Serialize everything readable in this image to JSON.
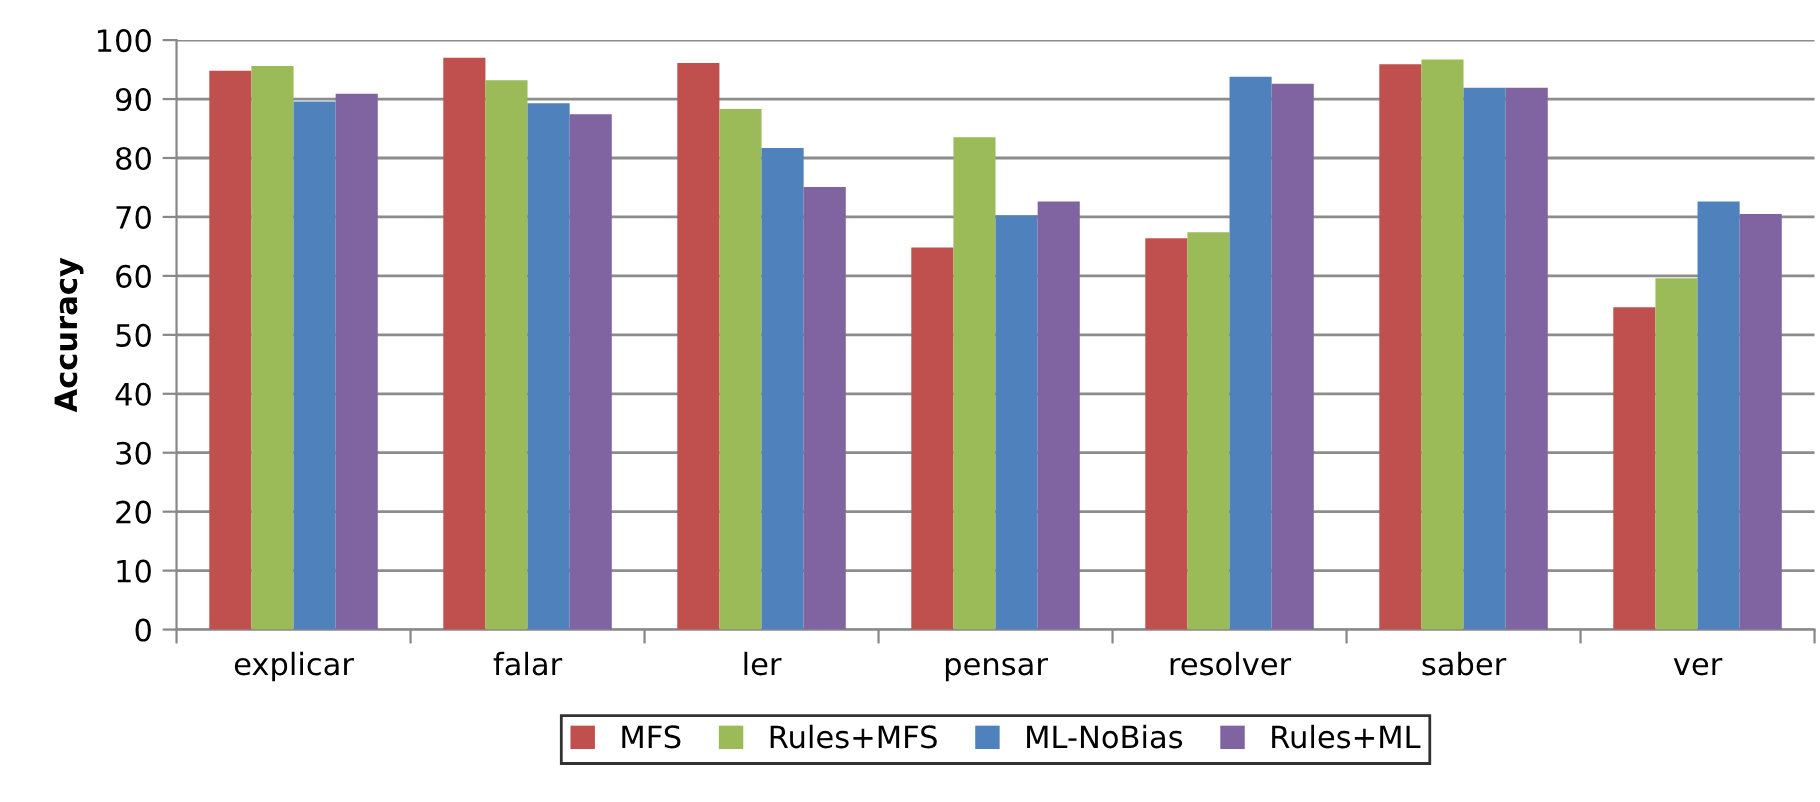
{
  "chart_data": {
    "type": "bar",
    "ylabel": "Accuracy",
    "categories": [
      "explicar",
      "falar",
      "ler",
      "pensar",
      "resolver",
      "saber",
      "ver"
    ],
    "series": [
      {
        "name": "MFS",
        "color": "#c0504d",
        "values": [
          94.8,
          97.0,
          96.1,
          64.8,
          66.4,
          95.9,
          54.7
        ]
      },
      {
        "name": "Rules+MFS",
        "color": "#9bbb59",
        "values": [
          95.6,
          93.2,
          88.3,
          83.5,
          67.4,
          96.7,
          59.6
        ]
      },
      {
        "name": "ML-NoBias",
        "color": "#4f81bd",
        "values": [
          89.6,
          89.3,
          81.7,
          70.3,
          93.8,
          91.9,
          72.6
        ]
      },
      {
        "name": "Rules+ML",
        "color": "#8064a2",
        "values": [
          90.9,
          87.4,
          75.1,
          72.6,
          92.6,
          91.9,
          70.5
        ]
      }
    ],
    "ylim": [
      0,
      100
    ],
    "yticks": [
      0,
      10,
      20,
      30,
      40,
      50,
      60,
      70,
      80,
      90,
      100
    ],
    "grid": "y",
    "legend": "bottom"
  }
}
